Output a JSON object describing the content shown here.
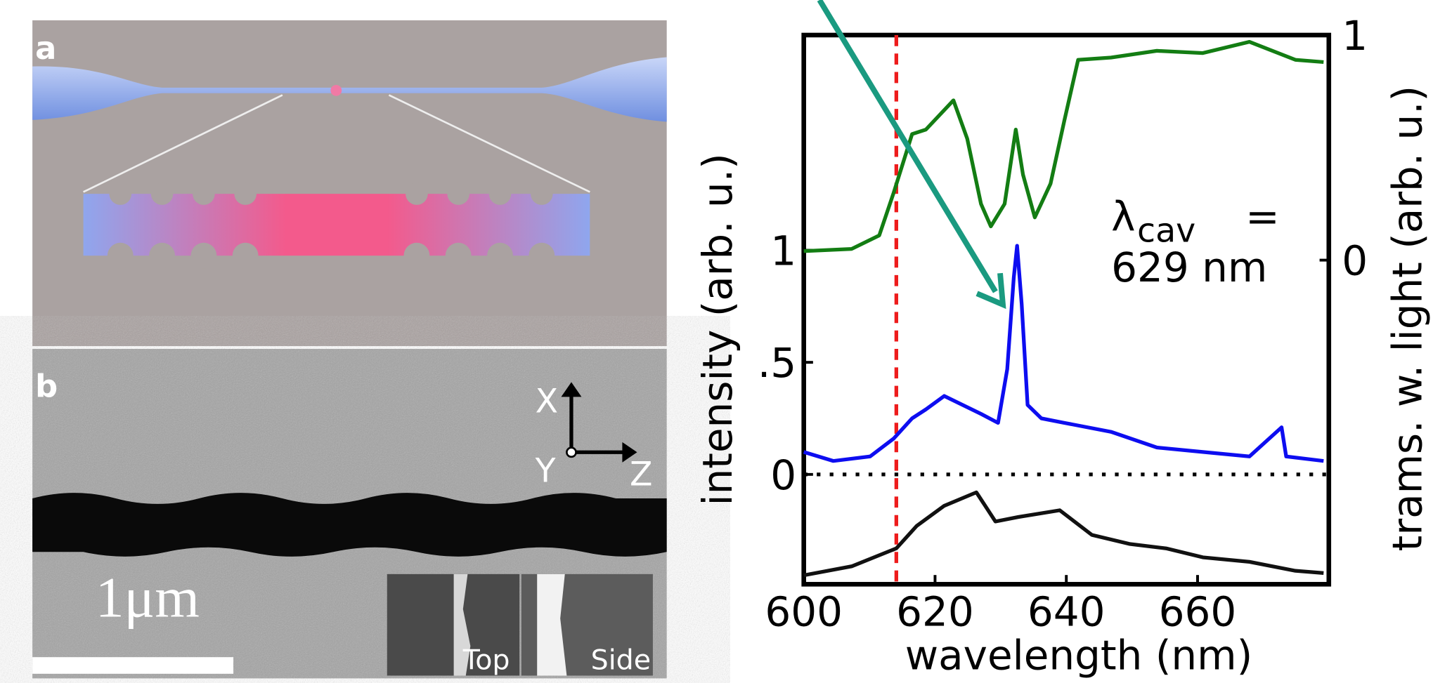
{
  "panels": {
    "a": {
      "label": "a"
    },
    "b": {
      "label": "b",
      "axes": [
        "X",
        "Y",
        "Z"
      ],
      "scale_bar": "1μm",
      "insets": [
        "Top",
        "Side"
      ]
    }
  },
  "chart_data": {
    "type": "line",
    "x_label": "wavelength (nm)",
    "y_label": "intensity (arb. u.)",
    "y2_label": "trams. w. light (arb. u.)",
    "xlim": [
      600,
      680
    ],
    "xticks": [
      600,
      620,
      640,
      660
    ],
    "ylim": [
      -0.49,
      1.96
    ],
    "yticks": [
      0,
      {
        "value": 0.5,
        "label": ".5"
      },
      1
    ],
    "y2lim": [
      -1.44,
      1.0
    ],
    "y2ticks": [
      0,
      1
    ],
    "vline": 614.1,
    "vline_color": "#ee1c1c",
    "hline": 0,
    "annotation": {
      "symbol": "λ",
      "subscript": "cav",
      "equals": "=",
      "value": "629 nm"
    },
    "series": [
      {
        "color": "#137d13",
        "axis": "y2",
        "x": [
          600,
          607.3,
          611.5,
          613.7,
          616.5,
          618.6,
          622.8,
          624.9,
          627.0,
          628.5,
          630.6,
          632.3,
          633.4,
          635.2,
          637.6,
          639.7,
          641.8,
          646.8,
          653.8,
          660.8,
          667.9,
          674.9,
          679.2
        ],
        "values": [
          0.04,
          0.05,
          0.11,
          0.3,
          0.56,
          0.58,
          0.71,
          0.54,
          0.25,
          0.15,
          0.25,
          0.58,
          0.38,
          0.19,
          0.34,
          0.62,
          0.89,
          0.9,
          0.93,
          0.92,
          0.97,
          0.89,
          0.88
        ]
      },
      {
        "color": "#0d0df0",
        "x": [
          600,
          604.5,
          610.1,
          613.7,
          616.5,
          618.6,
          621.4,
          624.2,
          627.0,
          629.6,
          631.0,
          632.0,
          632.5,
          633.2,
          634.1,
          636.2,
          639.7,
          646.8,
          653.8,
          660.8,
          667.9,
          672.8,
          673.5,
          679.2
        ],
        "values": [
          0.1,
          0.06,
          0.08,
          0.16,
          0.25,
          0.29,
          0.35,
          0.31,
          0.27,
          0.23,
          0.47,
          0.88,
          1.02,
          0.76,
          0.31,
          0.25,
          0.23,
          0.19,
          0.12,
          0.1,
          0.08,
          0.21,
          0.08,
          0.06
        ]
      },
      {
        "color": "#111111",
        "x": [
          600,
          607.3,
          614.1,
          617.2,
          621.4,
          626.3,
          629.2,
          632.7,
          639.0,
          643.9,
          649.6,
          655.2,
          660.8,
          667.9,
          674.9,
          679.2
        ],
        "values": [
          -0.45,
          -0.41,
          -0.33,
          -0.23,
          -0.14,
          -0.08,
          -0.21,
          -0.19,
          -0.16,
          -0.27,
          -0.31,
          -0.33,
          -0.37,
          -0.39,
          -0.43,
          -0.44
        ]
      }
    ]
  }
}
